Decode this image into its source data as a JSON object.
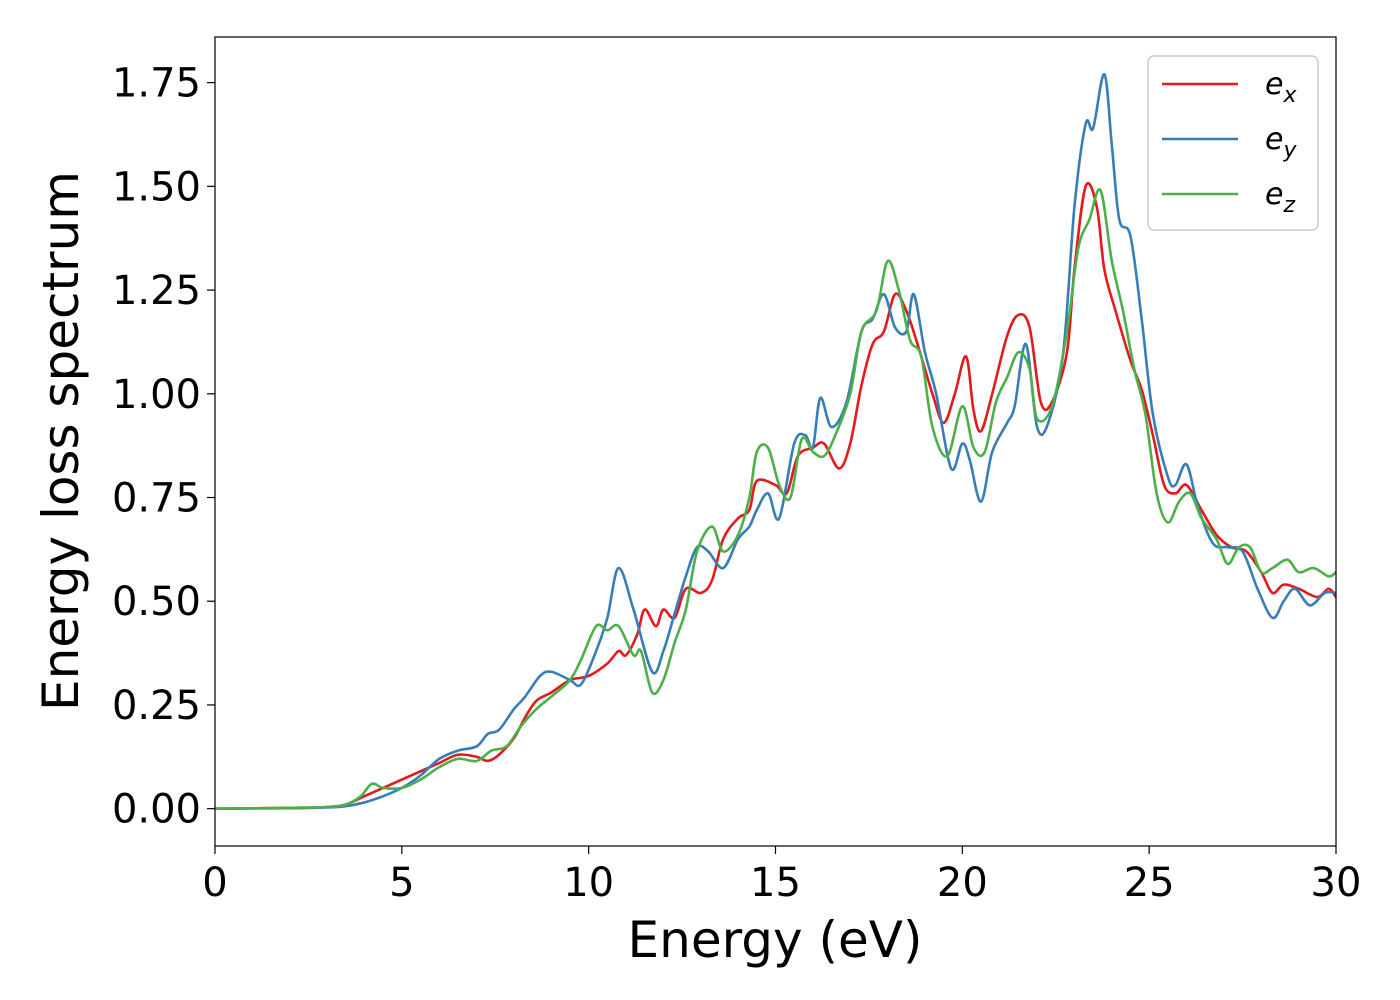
{
  "chart_data": {
    "type": "line",
    "title": "",
    "xlabel": "Energy (eV)",
    "ylabel": "Energy loss spectrum",
    "xlim": [
      0,
      30
    ],
    "ylim": [
      -0.09,
      1.86
    ],
    "xticks": [
      0,
      5,
      10,
      15,
      20,
      25,
      30
    ],
    "xtick_labels": [
      "0",
      "5",
      "10",
      "15",
      "20",
      "25",
      "30"
    ],
    "yticks": [
      0.0,
      0.25,
      0.5,
      0.75,
      1.0,
      1.25,
      1.5,
      1.75
    ],
    "ytick_labels": [
      "0.00",
      "0.25",
      "0.50",
      "0.75",
      "1.00",
      "1.25",
      "1.50",
      "1.75"
    ],
    "grid": false,
    "legend_position": "top-right",
    "series": [
      {
        "name": "e_x",
        "label_base": "e",
        "label_sub": "x",
        "color": "#e41a1c",
        "points": [
          [
            0,
            0
          ],
          [
            2,
            0.002
          ],
          [
            3,
            0.004
          ],
          [
            3.5,
            0.01
          ],
          [
            4,
            0.03
          ],
          [
            4.5,
            0.05
          ],
          [
            5,
            0.07
          ],
          [
            5.5,
            0.09
          ],
          [
            6,
            0.11
          ],
          [
            6.5,
            0.13
          ],
          [
            7,
            0.125
          ],
          [
            7.3,
            0.115
          ],
          [
            7.6,
            0.13
          ],
          [
            8,
            0.17
          ],
          [
            8.3,
            0.22
          ],
          [
            8.6,
            0.26
          ],
          [
            9,
            0.28
          ],
          [
            9.5,
            0.31
          ],
          [
            10,
            0.32
          ],
          [
            10.5,
            0.35
          ],
          [
            10.8,
            0.38
          ],
          [
            11,
            0.37
          ],
          [
            11.3,
            0.42
          ],
          [
            11.5,
            0.48
          ],
          [
            11.8,
            0.44
          ],
          [
            12,
            0.48
          ],
          [
            12.3,
            0.46
          ],
          [
            12.6,
            0.53
          ],
          [
            13,
            0.52
          ],
          [
            13.3,
            0.55
          ],
          [
            13.6,
            0.65
          ],
          [
            14,
            0.7
          ],
          [
            14.3,
            0.72
          ],
          [
            14.5,
            0.79
          ],
          [
            15,
            0.78
          ],
          [
            15.3,
            0.76
          ],
          [
            15.6,
            0.85
          ],
          [
            16,
            0.87
          ],
          [
            16.3,
            0.88
          ],
          [
            16.7,
            0.82
          ],
          [
            17,
            0.88
          ],
          [
            17.3,
            1.02
          ],
          [
            17.6,
            1.12
          ],
          [
            17.9,
            1.15
          ],
          [
            18.2,
            1.24
          ],
          [
            18.5,
            1.2
          ],
          [
            18.8,
            1.12
          ],
          [
            19.2,
            1.0
          ],
          [
            19.5,
            0.93
          ],
          [
            19.8,
            1.0
          ],
          [
            20.1,
            1.09
          ],
          [
            20.3,
            0.96
          ],
          [
            20.5,
            0.91
          ],
          [
            20.8,
            1.0
          ],
          [
            21.2,
            1.14
          ],
          [
            21.5,
            1.19
          ],
          [
            21.8,
            1.16
          ],
          [
            22.1,
            0.98
          ],
          [
            22.4,
            0.98
          ],
          [
            22.8,
            1.1
          ],
          [
            23.0,
            1.3
          ],
          [
            23.3,
            1.5
          ],
          [
            23.6,
            1.45
          ],
          [
            23.8,
            1.3
          ],
          [
            24.1,
            1.2
          ],
          [
            24.5,
            1.08
          ],
          [
            24.8,
            1.01
          ],
          [
            25.1,
            0.9
          ],
          [
            25.4,
            0.78
          ],
          [
            25.7,
            0.76
          ],
          [
            26,
            0.78
          ],
          [
            26.4,
            0.72
          ],
          [
            26.8,
            0.66
          ],
          [
            27.2,
            0.63
          ],
          [
            27.6,
            0.62
          ],
          [
            28,
            0.57
          ],
          [
            28.3,
            0.52
          ],
          [
            28.6,
            0.54
          ],
          [
            29,
            0.53
          ],
          [
            29.5,
            0.51
          ],
          [
            29.8,
            0.53
          ],
          [
            30,
            0.51
          ]
        ]
      },
      {
        "name": "e_y",
        "label_base": "e",
        "label_sub": "y",
        "color": "#377eb8",
        "points": [
          [
            0,
            0
          ],
          [
            2,
            0.001
          ],
          [
            3,
            0.003
          ],
          [
            3.5,
            0.006
          ],
          [
            4,
            0.015
          ],
          [
            4.5,
            0.03
          ],
          [
            5,
            0.05
          ],
          [
            5.5,
            0.08
          ],
          [
            6,
            0.12
          ],
          [
            6.5,
            0.14
          ],
          [
            7,
            0.15
          ],
          [
            7.3,
            0.18
          ],
          [
            7.6,
            0.19
          ],
          [
            8,
            0.24
          ],
          [
            8.3,
            0.27
          ],
          [
            8.7,
            0.32
          ],
          [
            9,
            0.33
          ],
          [
            9.5,
            0.31
          ],
          [
            9.8,
            0.3
          ],
          [
            10.2,
            0.38
          ],
          [
            10.5,
            0.46
          ],
          [
            10.8,
            0.58
          ],
          [
            11.2,
            0.48
          ],
          [
            11.7,
            0.33
          ],
          [
            12,
            0.38
          ],
          [
            12.3,
            0.47
          ],
          [
            12.6,
            0.56
          ],
          [
            12.9,
            0.63
          ],
          [
            13.2,
            0.62
          ],
          [
            13.6,
            0.58
          ],
          [
            14,
            0.65
          ],
          [
            14.3,
            0.68
          ],
          [
            14.5,
            0.72
          ],
          [
            14.8,
            0.76
          ],
          [
            15.1,
            0.7
          ],
          [
            15.5,
            0.88
          ],
          [
            15.8,
            0.9
          ],
          [
            16.0,
            0.87
          ],
          [
            16.2,
            0.99
          ],
          [
            16.5,
            0.92
          ],
          [
            16.9,
            0.98
          ],
          [
            17.3,
            1.15
          ],
          [
            17.6,
            1.18
          ],
          [
            17.9,
            1.24
          ],
          [
            18.2,
            1.16
          ],
          [
            18.5,
            1.15
          ],
          [
            18.7,
            1.24
          ],
          [
            19.0,
            1.1
          ],
          [
            19.3,
            1.0
          ],
          [
            19.7,
            0.82
          ],
          [
            20.0,
            0.88
          ],
          [
            20.2,
            0.84
          ],
          [
            20.5,
            0.74
          ],
          [
            20.8,
            0.86
          ],
          [
            21.2,
            0.93
          ],
          [
            21.4,
            0.97
          ],
          [
            21.7,
            1.12
          ],
          [
            22.0,
            0.92
          ],
          [
            22.3,
            0.93
          ],
          [
            22.7,
            1.1
          ],
          [
            23.0,
            1.45
          ],
          [
            23.3,
            1.65
          ],
          [
            23.5,
            1.64
          ],
          [
            23.8,
            1.77
          ],
          [
            24.0,
            1.6
          ],
          [
            24.2,
            1.42
          ],
          [
            24.5,
            1.38
          ],
          [
            24.8,
            1.18
          ],
          [
            25.1,
            0.95
          ],
          [
            25.5,
            0.8
          ],
          [
            25.7,
            0.78
          ],
          [
            26.0,
            0.83
          ],
          [
            26.3,
            0.73
          ],
          [
            26.7,
            0.64
          ],
          [
            27.1,
            0.63
          ],
          [
            27.5,
            0.62
          ],
          [
            27.9,
            0.53
          ],
          [
            28.3,
            0.46
          ],
          [
            28.6,
            0.5
          ],
          [
            28.9,
            0.53
          ],
          [
            29.3,
            0.49
          ],
          [
            29.7,
            0.52
          ],
          [
            30,
            0.52
          ]
        ]
      },
      {
        "name": "e_z",
        "label_base": "e",
        "label_sub": "z",
        "color": "#4daf4a",
        "points": [
          [
            0,
            0
          ],
          [
            2,
            0.002
          ],
          [
            3,
            0.004
          ],
          [
            3.5,
            0.01
          ],
          [
            3.9,
            0.03
          ],
          [
            4.2,
            0.06
          ],
          [
            4.5,
            0.05
          ],
          [
            5,
            0.05
          ],
          [
            5.5,
            0.07
          ],
          [
            6,
            0.1
          ],
          [
            6.5,
            0.12
          ],
          [
            7,
            0.115
          ],
          [
            7.4,
            0.14
          ],
          [
            7.8,
            0.15
          ],
          [
            8.2,
            0.2
          ],
          [
            8.6,
            0.24
          ],
          [
            9,
            0.27
          ],
          [
            9.5,
            0.31
          ],
          [
            9.8,
            0.36
          ],
          [
            10.2,
            0.44
          ],
          [
            10.5,
            0.43
          ],
          [
            10.8,
            0.44
          ],
          [
            11.2,
            0.37
          ],
          [
            11.4,
            0.38
          ],
          [
            11.7,
            0.28
          ],
          [
            12.0,
            0.31
          ],
          [
            12.3,
            0.4
          ],
          [
            12.6,
            0.48
          ],
          [
            12.9,
            0.62
          ],
          [
            13.3,
            0.68
          ],
          [
            13.6,
            0.62
          ],
          [
            14,
            0.66
          ],
          [
            14.3,
            0.75
          ],
          [
            14.5,
            0.86
          ],
          [
            14.8,
            0.87
          ],
          [
            15.1,
            0.78
          ],
          [
            15.4,
            0.75
          ],
          [
            15.7,
            0.89
          ],
          [
            16.0,
            0.86
          ],
          [
            16.3,
            0.85
          ],
          [
            16.6,
            0.9
          ],
          [
            17.0,
            1.0
          ],
          [
            17.3,
            1.15
          ],
          [
            17.7,
            1.2
          ],
          [
            18.0,
            1.32
          ],
          [
            18.3,
            1.25
          ],
          [
            18.6,
            1.13
          ],
          [
            18.9,
            1.09
          ],
          [
            19.2,
            0.92
          ],
          [
            19.6,
            0.85
          ],
          [
            20.0,
            0.97
          ],
          [
            20.3,
            0.87
          ],
          [
            20.6,
            0.86
          ],
          [
            20.9,
            0.98
          ],
          [
            21.2,
            1.04
          ],
          [
            21.5,
            1.1
          ],
          [
            21.8,
            1.06
          ],
          [
            22.0,
            0.94
          ],
          [
            22.4,
            0.97
          ],
          [
            22.8,
            1.15
          ],
          [
            23.1,
            1.35
          ],
          [
            23.4,
            1.42
          ],
          [
            23.7,
            1.49
          ],
          [
            24.0,
            1.32
          ],
          [
            24.3,
            1.2
          ],
          [
            24.6,
            1.06
          ],
          [
            24.9,
            0.95
          ],
          [
            25.2,
            0.76
          ],
          [
            25.5,
            0.69
          ],
          [
            25.8,
            0.74
          ],
          [
            26.1,
            0.76
          ],
          [
            26.4,
            0.7
          ],
          [
            26.8,
            0.65
          ],
          [
            27.1,
            0.59
          ],
          [
            27.4,
            0.63
          ],
          [
            27.7,
            0.63
          ],
          [
            28,
            0.57
          ],
          [
            28.3,
            0.58
          ],
          [
            28.7,
            0.6
          ],
          [
            29.0,
            0.57
          ],
          [
            29.4,
            0.58
          ],
          [
            29.8,
            0.56
          ],
          [
            30,
            0.57
          ]
        ]
      }
    ]
  }
}
